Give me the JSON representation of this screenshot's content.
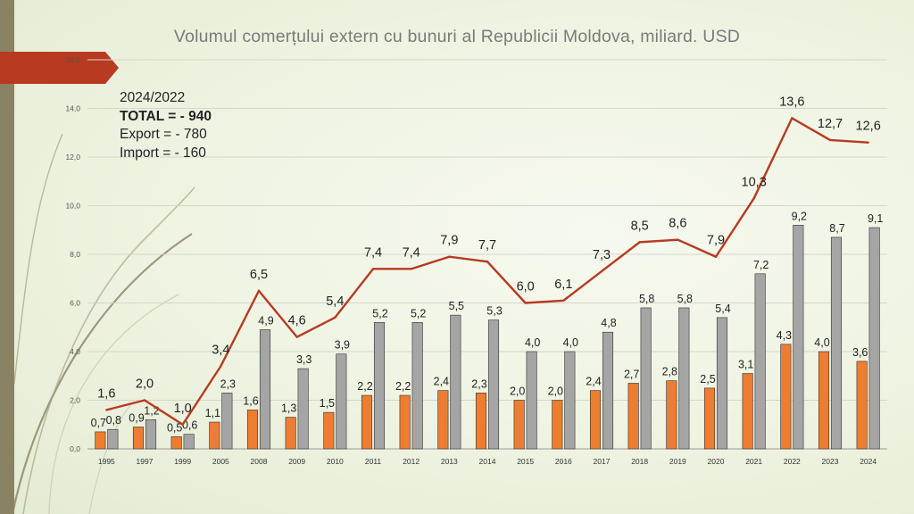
{
  "slide": {
    "title": "Volumul comerțului extern cu bunuri al Republicii Moldova, miliard. USD"
  },
  "summary": {
    "period": "2024/2022",
    "total": "TOTAL = - 940",
    "export": "Export = - 780",
    "import": "Import = - 160"
  },
  "colors": {
    "accent_arrow": "#b83a20",
    "total_line": "#b83a20",
    "export_bar": "#ed7d31",
    "import_bar": "#a5a5a5",
    "bar_stroke": "#333333",
    "left_bar": "#8a8363"
  },
  "chart_data": {
    "type": "bar+line",
    "title": "Volumul comerțului extern cu bunuri al Republicii Moldova, miliard. USD",
    "categories": [
      "1995",
      "1997",
      "1999",
      "2005",
      "2008",
      "2009",
      "2010",
      "2011",
      "2012",
      "2013",
      "2014",
      "2015",
      "2016",
      "2017",
      "2018",
      "2019",
      "2020",
      "2021",
      "2022",
      "2023",
      "2024"
    ],
    "series": [
      {
        "name": "Export",
        "type": "bar",
        "values": [
          0.7,
          0.9,
          0.5,
          1.1,
          1.6,
          1.3,
          1.5,
          2.2,
          2.2,
          2.4,
          2.3,
          2.0,
          2.0,
          2.4,
          2.7,
          2.8,
          2.5,
          3.1,
          4.3,
          4.0,
          3.6
        ]
      },
      {
        "name": "Import",
        "type": "bar",
        "values": [
          0.8,
          1.2,
          0.6,
          2.3,
          4.9,
          3.3,
          3.9,
          5.2,
          5.2,
          5.5,
          5.3,
          4.0,
          4.0,
          4.8,
          5.8,
          5.8,
          5.4,
          7.2,
          9.2,
          8.7,
          9.1
        ]
      },
      {
        "name": "Total",
        "type": "line",
        "values": [
          1.6,
          2.0,
          1.0,
          3.4,
          6.5,
          4.6,
          5.4,
          7.4,
          7.4,
          7.9,
          7.7,
          6.0,
          6.1,
          7.3,
          8.5,
          8.6,
          7.9,
          10.3,
          13.6,
          12.7,
          12.6
        ]
      }
    ],
    "ylim": [
      0,
      16
    ],
    "yticks": [
      "0,0",
      "2,0",
      "4,0",
      "6,0",
      "8,0",
      "10,0",
      "12,0",
      "14,0",
      "16,0"
    ],
    "grid": true,
    "xlabel": "",
    "ylabel": ""
  }
}
